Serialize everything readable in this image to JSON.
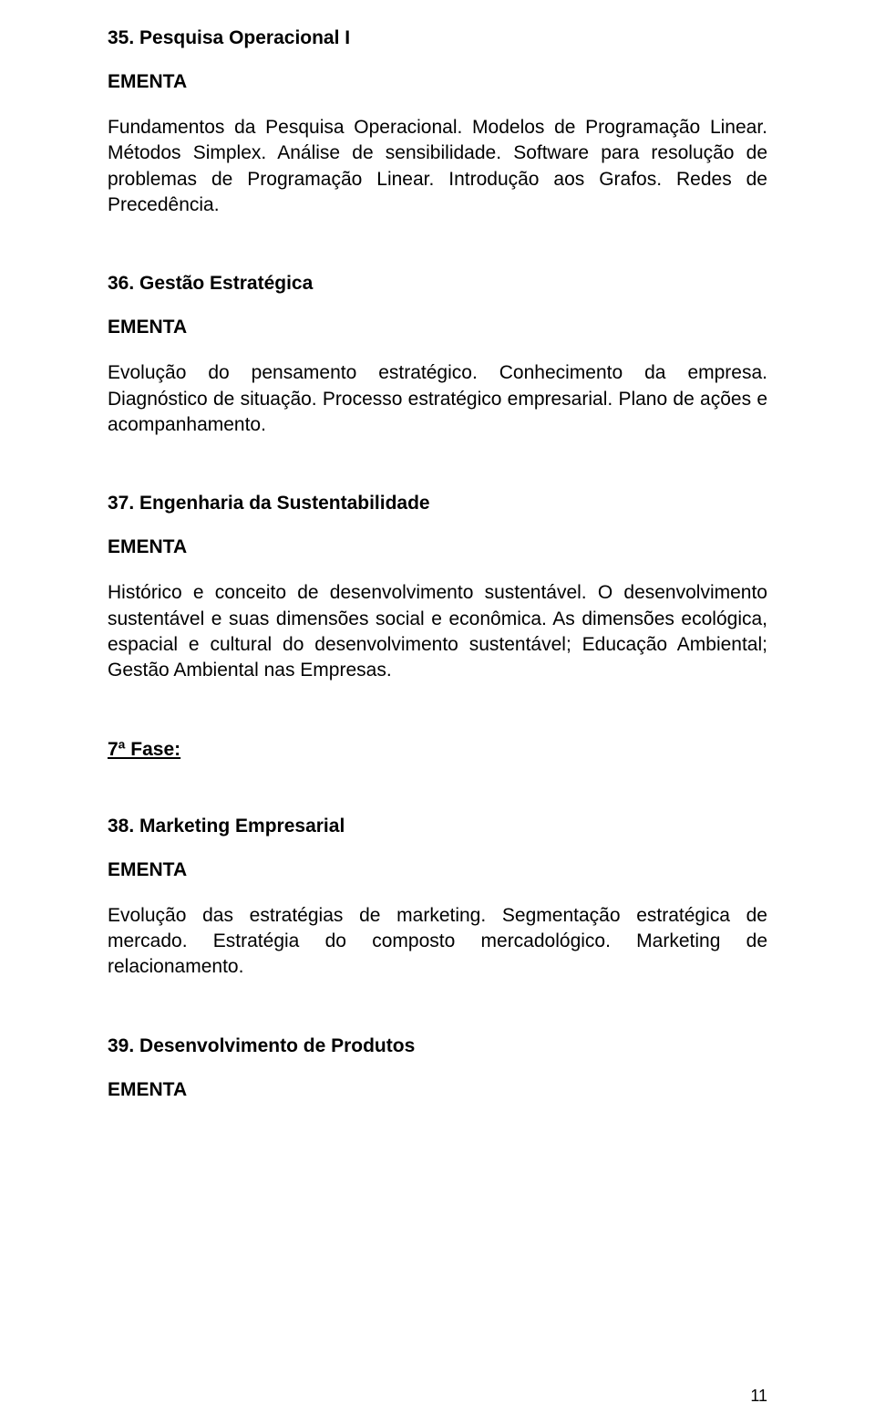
{
  "page": {
    "number": "11"
  },
  "sections": [
    {
      "id": "s35",
      "heading": "35. Pesquisa Operacional I",
      "ementa": "EMENTA",
      "body": "Fundamentos da Pesquisa Operacional. Modelos de Programação Linear. Métodos Simplex. Análise de sensibilidade. Software para resolução de problemas de Programação Linear. Introdução aos Grafos. Redes de Precedência."
    },
    {
      "id": "s36",
      "heading": "36. Gestão Estratégica",
      "ementa": "EMENTA",
      "body": "Evolução do pensamento estratégico. Conhecimento da empresa. Diagnóstico de situação. Processo estratégico empresarial. Plano de ações e acompanhamento."
    },
    {
      "id": "s37",
      "heading": "37. Engenharia da Sustentabilidade",
      "ementa": "EMENTA",
      "body": "Histórico e conceito de desenvolvimento sustentável. O desenvolvimento sustentável e suas dimensões social e econômica. As dimensões ecológica, espacial e cultural do desenvolvimento sustentável; Educação Ambiental; Gestão Ambiental nas Empresas."
    }
  ],
  "fase": {
    "label": "7ª Fase:"
  },
  "sections2": [
    {
      "id": "s38",
      "heading": "38. Marketing Empresarial",
      "ementa": "EMENTA",
      "body": "Evolução das estratégias de marketing. Segmentação estratégica de mercado. Estratégia do composto mercadológico. Marketing de relacionamento."
    },
    {
      "id": "s39",
      "heading": "39. Desenvolvimento de Produtos",
      "ementa": "EMENTA",
      "body": ""
    }
  ],
  "typography": {
    "font_family": "Arial",
    "heading_fontsize_pt": 16,
    "body_fontsize_pt": 16,
    "text_color": "#000000",
    "background_color": "#ffffff"
  }
}
